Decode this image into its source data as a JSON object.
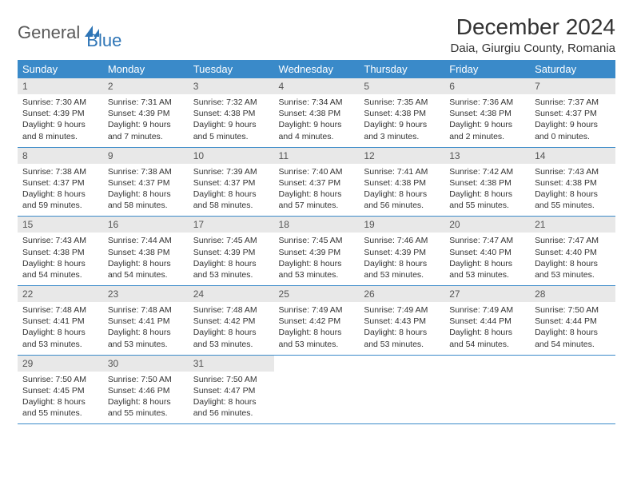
{
  "brand": {
    "part1": "General",
    "part2": "Blue"
  },
  "title": "December 2024",
  "location": "Daia, Giurgiu County, Romania",
  "colors": {
    "header_bg": "#3a8ac9",
    "header_text": "#ffffff",
    "daynum_bg": "#e8e8e8",
    "border": "#3a8ac9",
    "brand_gray": "#5a5a5a",
    "brand_blue": "#2e75b6"
  },
  "day_headers": [
    "Sunday",
    "Monday",
    "Tuesday",
    "Wednesday",
    "Thursday",
    "Friday",
    "Saturday"
  ],
  "weeks": [
    [
      {
        "n": "1",
        "sunrise": "7:30 AM",
        "sunset": "4:39 PM",
        "daylight": "9 hours and 8 minutes."
      },
      {
        "n": "2",
        "sunrise": "7:31 AM",
        "sunset": "4:39 PM",
        "daylight": "9 hours and 7 minutes."
      },
      {
        "n": "3",
        "sunrise": "7:32 AM",
        "sunset": "4:38 PM",
        "daylight": "9 hours and 5 minutes."
      },
      {
        "n": "4",
        "sunrise": "7:34 AM",
        "sunset": "4:38 PM",
        "daylight": "9 hours and 4 minutes."
      },
      {
        "n": "5",
        "sunrise": "7:35 AM",
        "sunset": "4:38 PM",
        "daylight": "9 hours and 3 minutes."
      },
      {
        "n": "6",
        "sunrise": "7:36 AM",
        "sunset": "4:38 PM",
        "daylight": "9 hours and 2 minutes."
      },
      {
        "n": "7",
        "sunrise": "7:37 AM",
        "sunset": "4:37 PM",
        "daylight": "9 hours and 0 minutes."
      }
    ],
    [
      {
        "n": "8",
        "sunrise": "7:38 AM",
        "sunset": "4:37 PM",
        "daylight": "8 hours and 59 minutes."
      },
      {
        "n": "9",
        "sunrise": "7:38 AM",
        "sunset": "4:37 PM",
        "daylight": "8 hours and 58 minutes."
      },
      {
        "n": "10",
        "sunrise": "7:39 AM",
        "sunset": "4:37 PM",
        "daylight": "8 hours and 58 minutes."
      },
      {
        "n": "11",
        "sunrise": "7:40 AM",
        "sunset": "4:37 PM",
        "daylight": "8 hours and 57 minutes."
      },
      {
        "n": "12",
        "sunrise": "7:41 AM",
        "sunset": "4:38 PM",
        "daylight": "8 hours and 56 minutes."
      },
      {
        "n": "13",
        "sunrise": "7:42 AM",
        "sunset": "4:38 PM",
        "daylight": "8 hours and 55 minutes."
      },
      {
        "n": "14",
        "sunrise": "7:43 AM",
        "sunset": "4:38 PM",
        "daylight": "8 hours and 55 minutes."
      }
    ],
    [
      {
        "n": "15",
        "sunrise": "7:43 AM",
        "sunset": "4:38 PM",
        "daylight": "8 hours and 54 minutes."
      },
      {
        "n": "16",
        "sunrise": "7:44 AM",
        "sunset": "4:38 PM",
        "daylight": "8 hours and 54 minutes."
      },
      {
        "n": "17",
        "sunrise": "7:45 AM",
        "sunset": "4:39 PM",
        "daylight": "8 hours and 53 minutes."
      },
      {
        "n": "18",
        "sunrise": "7:45 AM",
        "sunset": "4:39 PM",
        "daylight": "8 hours and 53 minutes."
      },
      {
        "n": "19",
        "sunrise": "7:46 AM",
        "sunset": "4:39 PM",
        "daylight": "8 hours and 53 minutes."
      },
      {
        "n": "20",
        "sunrise": "7:47 AM",
        "sunset": "4:40 PM",
        "daylight": "8 hours and 53 minutes."
      },
      {
        "n": "21",
        "sunrise": "7:47 AM",
        "sunset": "4:40 PM",
        "daylight": "8 hours and 53 minutes."
      }
    ],
    [
      {
        "n": "22",
        "sunrise": "7:48 AM",
        "sunset": "4:41 PM",
        "daylight": "8 hours and 53 minutes."
      },
      {
        "n": "23",
        "sunrise": "7:48 AM",
        "sunset": "4:41 PM",
        "daylight": "8 hours and 53 minutes."
      },
      {
        "n": "24",
        "sunrise": "7:48 AM",
        "sunset": "4:42 PM",
        "daylight": "8 hours and 53 minutes."
      },
      {
        "n": "25",
        "sunrise": "7:49 AM",
        "sunset": "4:42 PM",
        "daylight": "8 hours and 53 minutes."
      },
      {
        "n": "26",
        "sunrise": "7:49 AM",
        "sunset": "4:43 PM",
        "daylight": "8 hours and 53 minutes."
      },
      {
        "n": "27",
        "sunrise": "7:49 AM",
        "sunset": "4:44 PM",
        "daylight": "8 hours and 54 minutes."
      },
      {
        "n": "28",
        "sunrise": "7:50 AM",
        "sunset": "4:44 PM",
        "daylight": "8 hours and 54 minutes."
      }
    ],
    [
      {
        "n": "29",
        "sunrise": "7:50 AM",
        "sunset": "4:45 PM",
        "daylight": "8 hours and 55 minutes."
      },
      {
        "n": "30",
        "sunrise": "7:50 AM",
        "sunset": "4:46 PM",
        "daylight": "8 hours and 55 minutes."
      },
      {
        "n": "31",
        "sunrise": "7:50 AM",
        "sunset": "4:47 PM",
        "daylight": "8 hours and 56 minutes."
      },
      null,
      null,
      null,
      null
    ]
  ],
  "labels": {
    "sunrise": "Sunrise:",
    "sunset": "Sunset:",
    "daylight": "Daylight:"
  }
}
